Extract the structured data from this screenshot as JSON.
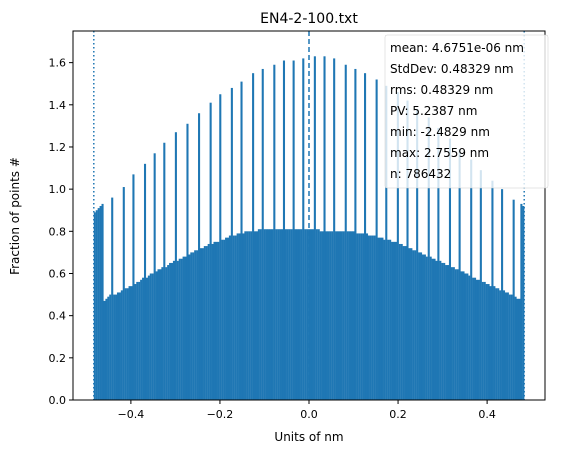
{
  "chart_data": {
    "type": "bar",
    "title": "EN4-2-100.txt",
    "xlabel": "Units of nm",
    "ylabel": "Fraction of points #",
    "xlim": [
      -0.53,
      0.53
    ],
    "ylim": [
      0,
      1.75
    ],
    "x_ticks": [
      "−0.4",
      "−0.2",
      "0.0",
      "0.2",
      "0.4"
    ],
    "x_tick_values": [
      -0.4,
      -0.2,
      0.0,
      0.2,
      0.4
    ],
    "y_ticks": [
      "0.0",
      "0.2",
      "0.4",
      "0.6",
      "0.8",
      "1.0",
      "1.2",
      "1.4",
      "1.6"
    ],
    "y_tick_values": [
      0,
      0.2,
      0.4,
      0.6,
      0.8,
      1.0,
      1.2,
      1.4,
      1.6
    ],
    "bin_range": [
      -0.4833,
      0.4833
    ],
    "bar_color": "#1f77b4",
    "reference_lines": [
      {
        "x": 0.0,
        "style": "dashed",
        "color": "#1f77b4"
      },
      {
        "x": -0.4833,
        "style": "dotted",
        "color": "#1f77b4"
      },
      {
        "x": 0.4833,
        "style": "dotted",
        "color": "#1f77b4"
      }
    ],
    "series": [
      {
        "values": [
          0.89,
          0.9,
          0.91,
          0.92,
          0.93,
          0.47,
          0.48,
          0.49,
          0.5,
          0.96,
          0.5,
          0.5,
          0.51,
          0.51,
          0.52,
          1.01,
          0.53,
          0.53,
          0.54,
          0.54,
          1.07,
          0.55,
          0.56,
          0.56,
          0.57,
          0.58,
          1.12,
          0.58,
          0.59,
          0.6,
          0.6,
          1.17,
          0.61,
          0.62,
          0.62,
          0.63,
          1.22,
          0.63,
          0.64,
          0.65,
          0.65,
          0.66,
          1.27,
          0.66,
          0.67,
          0.67,
          0.68,
          0.68,
          1.31,
          0.69,
          0.7,
          0.7,
          0.71,
          0.71,
          1.36,
          0.72,
          0.72,
          0.73,
          0.73,
          0.74,
          1.41,
          0.74,
          0.75,
          0.75,
          0.75,
          1.45,
          0.76,
          0.76,
          0.77,
          0.77,
          0.78,
          1.48,
          0.78,
          0.78,
          0.79,
          0.79,
          1.51,
          0.79,
          0.8,
          0.8,
          0.8,
          0.8,
          1.55,
          0.8,
          0.8,
          0.81,
          0.81,
          1.57,
          0.81,
          0.81,
          0.81,
          0.81,
          0.81,
          1.59,
          0.81,
          0.81,
          0.81,
          0.81,
          1.61,
          0.81,
          0.81,
          0.81,
          0.81,
          1.61,
          0.81,
          0.81,
          0.81,
          0.81,
          1.62,
          0.81,
          0.81,
          0.81,
          0.81,
          0.81,
          1.63,
          0.81,
          0.81,
          0.8,
          0.8,
          1.63,
          0.8,
          0.8,
          0.8,
          0.8,
          1.62,
          0.8,
          0.8,
          0.8,
          0.8,
          0.8,
          1.59,
          0.8,
          0.8,
          0.8,
          0.8,
          1.57,
          0.79,
          0.79,
          0.79,
          0.79,
          1.55,
          0.79,
          0.78,
          0.78,
          0.78,
          0.78,
          1.52,
          0.77,
          0.77,
          0.77,
          0.76,
          1.49,
          0.76,
          0.76,
          0.75,
          0.75,
          0.75,
          1.46,
          0.74,
          0.74,
          0.73,
          0.73,
          1.42,
          0.72,
          0.72,
          0.71,
          0.71,
          1.38,
          0.7,
          0.7,
          0.69,
          0.69,
          0.68,
          1.34,
          0.68,
          0.67,
          0.67,
          0.66,
          1.29,
          0.66,
          0.65,
          0.65,
          0.64,
          0.64,
          1.24,
          0.63,
          0.63,
          0.62,
          0.62,
          1.19,
          0.61,
          0.61,
          0.6,
          0.6,
          0.59,
          1.14,
          0.58,
          0.58,
          0.57,
          0.57,
          1.09,
          0.56,
          0.56,
          0.55,
          0.55,
          0.54,
          1.04,
          0.54,
          0.53,
          0.53,
          0.52,
          1.0,
          0.52,
          0.51,
          0.51,
          0.5,
          0.5,
          0.95,
          0.49,
          0.48,
          0.48,
          0.93,
          0.92
        ]
      }
    ],
    "stats_box": {
      "lines": [
        "mean: 4.6751e-06 nm",
        "StdDev: 0.48329 nm",
        "rms: 0.48329 nm",
        "PV: 5.2387 nm",
        "min: -2.4829 nm",
        "max: 2.7559 nm",
        "n: 786432"
      ],
      "placement": "top-right"
    },
    "grid": false
  }
}
